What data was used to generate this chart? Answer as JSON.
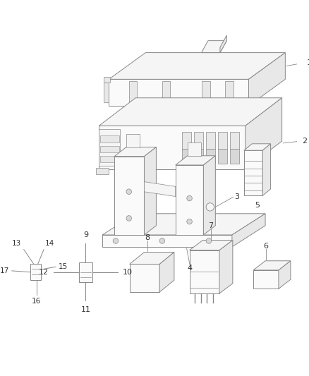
{
  "bg_color": "#ffffff",
  "lc": "#888888",
  "lc_dark": "#555555",
  "lc_thin": "#aaaaaa",
  "label_color": "#333333",
  "figsize": [
    4.38,
    5.33
  ],
  "dpi": 100,
  "fc_light": "#f5f5f5",
  "fc_mid": "#e8e8e8",
  "fc_dark": "#d8d8d8",
  "fc_white": "#fafafa"
}
